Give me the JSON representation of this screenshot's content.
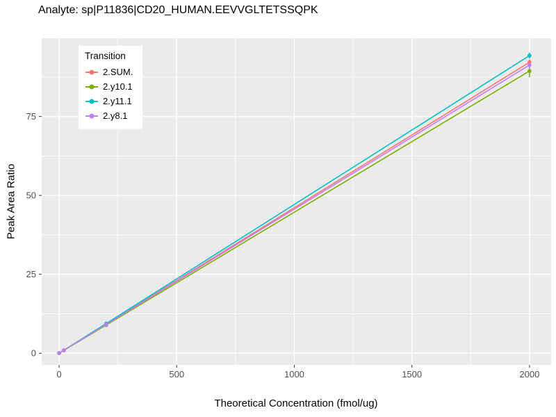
{
  "chart_data": {
    "type": "line",
    "title": "Analyte: sp|P11836|CD20_HUMAN.EEVVGLTETSSQPK",
    "xlabel": "Theoretical Concentration (fmol/ug)",
    "ylabel": "Peak Area Ratio",
    "legend_title": "Transition",
    "legend_position": "inside-top-left",
    "grid": true,
    "panel_bg": "#EBEBEB",
    "grid_color": "#FFFFFF",
    "tick_color": "#333333",
    "tick_label_color": "#4D4D4D",
    "x": [
      0,
      20,
      200,
      2000
    ],
    "xticks": [
      0,
      500,
      1000,
      1500,
      2000
    ],
    "yticks": [
      0,
      25,
      50,
      75
    ],
    "xlim": [
      -74,
      2092
    ],
    "ylim": [
      -3.7,
      99.8
    ],
    "series": [
      {
        "name": "2.SUM.",
        "color": "#F8766D",
        "values": [
          0.03,
          0.92,
          9.2,
          92.2
        ],
        "yerr_last": 0.9
      },
      {
        "name": "2.y10.1",
        "color": "#7CAE00",
        "values": [
          0.03,
          0.89,
          8.9,
          89.4
        ],
        "yerr_last": 2.0
      },
      {
        "name": "2.y11.1",
        "color": "#00BFC4",
        "values": [
          0.03,
          0.94,
          9.4,
          94.3
        ],
        "yerr_last": 0.9
      },
      {
        "name": "2.y8.1",
        "color": "#C77CFF",
        "values": [
          0.03,
          0.91,
          9.1,
          91.3
        ],
        "yerr_last": 1.2
      }
    ]
  }
}
